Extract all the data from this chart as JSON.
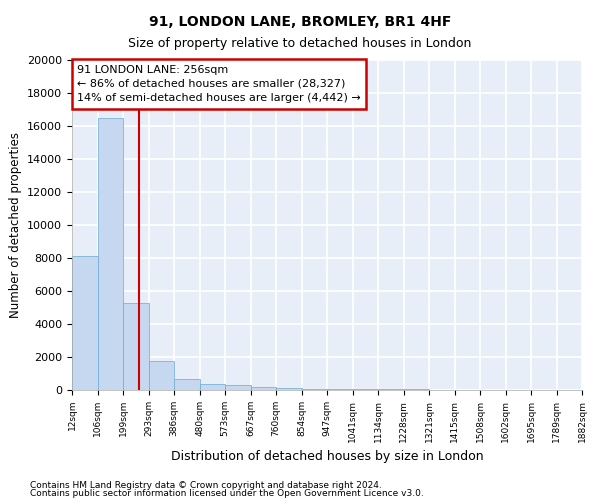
{
  "title": "91, LONDON LANE, BROMLEY, BR1 4HF",
  "subtitle": "Size of property relative to detached houses in London",
  "xlabel": "Distribution of detached houses by size in London",
  "ylabel": "Number of detached properties",
  "footnote1": "Contains HM Land Registry data © Crown copyright and database right 2024.",
  "footnote2": "Contains public sector information licensed under the Open Government Licence v3.0.",
  "annotation_title": "91 LONDON LANE: 256sqm",
  "annotation_line1": "← 86% of detached houses are smaller (28,327)",
  "annotation_line2": "14% of semi-detached houses are larger (4,442) →",
  "bar_color": "#c5d8f0",
  "bar_edge_color": "#6aaad4",
  "red_line_color": "#cc0000",
  "annotation_box_edgecolor": "#cc0000",
  "background_color": "#e8eef8",
  "grid_color": "#ffffff",
  "bin_edges": [
    12,
    106,
    199,
    293,
    386,
    480,
    573,
    667,
    760,
    854,
    947,
    1041,
    1134,
    1228,
    1321,
    1415,
    1508,
    1602,
    1695,
    1789,
    1882
  ],
  "bin_labels": [
    "12sqm",
    "106sqm",
    "199sqm",
    "293sqm",
    "386sqm",
    "480sqm",
    "573sqm",
    "667sqm",
    "760sqm",
    "854sqm",
    "947sqm",
    "1041sqm",
    "1134sqm",
    "1228sqm",
    "1321sqm",
    "1415sqm",
    "1508sqm",
    "1602sqm",
    "1695sqm",
    "1789sqm",
    "1882sqm"
  ],
  "bar_heights": [
    8100,
    16500,
    5300,
    1750,
    650,
    350,
    275,
    200,
    150,
    80,
    60,
    50,
    40,
    35,
    25,
    20,
    15,
    10,
    8,
    6
  ],
  "property_size": 256,
  "ylim": [
    0,
    20000
  ],
  "yticks": [
    0,
    2000,
    4000,
    6000,
    8000,
    10000,
    12000,
    14000,
    16000,
    18000,
    20000
  ]
}
